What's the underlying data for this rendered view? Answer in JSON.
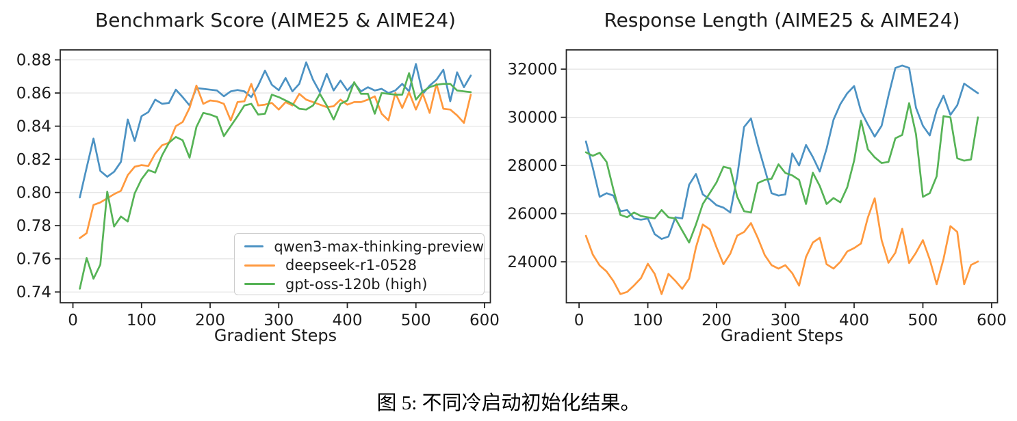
{
  "caption": {
    "text": "图 5: 不同冷启动初始化结果。"
  },
  "x_axis_label": "Gradient Steps",
  "colors": {
    "blue": "#4c92c3",
    "orange": "#ff993e",
    "green": "#56b356",
    "grid": "#e5e5e5",
    "spine": "#262626",
    "text": "#1c1c1c"
  },
  "chart_data": [
    {
      "type": "line",
      "title": "Benchmark Score (AIME25 & AIME24)",
      "xlabel": "Gradient Steps",
      "ylabel": "",
      "xlim": [
        -18.5,
        608.5
      ],
      "ylim": [
        0.7335,
        0.886
      ],
      "xticks": [
        0,
        100,
        200,
        300,
        400,
        500,
        600
      ],
      "yticks": [
        0.74,
        0.76,
        0.78,
        0.8,
        0.82,
        0.84,
        0.86,
        0.88
      ],
      "ytick_decimals": 2,
      "grid": "horizontal",
      "legend_position": "lower-right-inside",
      "x": [
        10,
        20,
        30,
        40,
        50,
        60,
        70,
        80,
        90,
        100,
        110,
        120,
        130,
        140,
        150,
        160,
        170,
        180,
        190,
        200,
        210,
        220,
        230,
        240,
        250,
        260,
        270,
        280,
        290,
        300,
        310,
        320,
        330,
        340,
        350,
        360,
        370,
        380,
        390,
        400,
        410,
        420,
        430,
        440,
        450,
        460,
        470,
        480,
        490,
        500,
        510,
        520,
        530,
        540,
        550,
        560,
        570,
        580
      ],
      "series": [
        {
          "name": "qwen3-max-thinking-preview",
          "color": "#4c92c3",
          "values": [
            0.797,
            0.815,
            0.8325,
            0.813,
            0.8095,
            0.8125,
            0.8185,
            0.844,
            0.831,
            0.846,
            0.8485,
            0.856,
            0.8535,
            0.854,
            0.862,
            0.8575,
            0.8525,
            0.863,
            0.8625,
            0.862,
            0.8615,
            0.858,
            0.861,
            0.8618,
            0.861,
            0.8575,
            0.8645,
            0.8735,
            0.865,
            0.8617,
            0.869,
            0.861,
            0.8655,
            0.8785,
            0.868,
            0.8605,
            0.8715,
            0.8615,
            0.8675,
            0.8615,
            0.866,
            0.861,
            0.8635,
            0.8615,
            0.8625,
            0.86,
            0.8615,
            0.8655,
            0.861,
            0.8775,
            0.8595,
            0.8645,
            0.868,
            0.874,
            0.855,
            0.8725,
            0.8635,
            0.8705
          ]
        },
        {
          "name": "deepseek-r1-0528",
          "color": "#ff993e",
          "values": [
            0.7725,
            0.7755,
            0.7925,
            0.794,
            0.7965,
            0.799,
            0.801,
            0.8105,
            0.8155,
            0.8165,
            0.816,
            0.8235,
            0.8285,
            0.83,
            0.84,
            0.8425,
            0.851,
            0.8645,
            0.8535,
            0.8555,
            0.855,
            0.8535,
            0.8435,
            0.8545,
            0.855,
            0.8655,
            0.8525,
            0.853,
            0.854,
            0.85,
            0.8545,
            0.8525,
            0.8595,
            0.856,
            0.8545,
            0.853,
            0.8515,
            0.852,
            0.856,
            0.853,
            0.8545,
            0.8545,
            0.856,
            0.858,
            0.8475,
            0.8435,
            0.86,
            0.851,
            0.8605,
            0.85,
            0.8595,
            0.848,
            0.8655,
            0.8505,
            0.85,
            0.8465,
            0.842,
            0.859
          ]
        },
        {
          "name": "gpt-oss-120b (high)",
          "color": "#56b356",
          "values": [
            0.742,
            0.7605,
            0.748,
            0.7565,
            0.8005,
            0.7795,
            0.7855,
            0.7825,
            0.7995,
            0.808,
            0.8135,
            0.812,
            0.8225,
            0.83,
            0.8335,
            0.8315,
            0.821,
            0.8395,
            0.848,
            0.847,
            0.8455,
            0.834,
            0.84,
            0.846,
            0.8525,
            0.8535,
            0.847,
            0.8475,
            0.859,
            0.8575,
            0.8555,
            0.8535,
            0.8505,
            0.85,
            0.8525,
            0.8595,
            0.8525,
            0.844,
            0.8535,
            0.8555,
            0.8665,
            0.8595,
            0.8595,
            0.8475,
            0.86,
            0.8595,
            0.859,
            0.859,
            0.872,
            0.856,
            0.861,
            0.8635,
            0.865,
            0.8655,
            0.8655,
            0.8615,
            0.861,
            0.8605
          ]
        }
      ]
    },
    {
      "type": "line",
      "title": "Response Length (AIME25 & AIME24)",
      "xlabel": "Gradient Steps",
      "ylabel": "",
      "xlim": [
        -18.5,
        608.5
      ],
      "ylim": [
        22300,
        32800
      ],
      "xticks": [
        0,
        100,
        200,
        300,
        400,
        500,
        600
      ],
      "yticks": [
        24000,
        26000,
        28000,
        30000,
        32000
      ],
      "ytick_decimals": 0,
      "grid": "horizontal",
      "legend_position": "none",
      "x": [
        10,
        20,
        30,
        40,
        50,
        60,
        70,
        80,
        90,
        100,
        110,
        120,
        130,
        140,
        150,
        160,
        170,
        180,
        190,
        200,
        210,
        220,
        230,
        240,
        250,
        260,
        270,
        280,
        290,
        300,
        310,
        320,
        330,
        340,
        350,
        360,
        370,
        380,
        390,
        400,
        410,
        420,
        430,
        440,
        450,
        460,
        470,
        480,
        490,
        500,
        510,
        520,
        530,
        540,
        550,
        560,
        570,
        580
      ],
      "series": [
        {
          "name": "qwen3-max-thinking-preview",
          "color": "#4c92c3",
          "values": [
            29000,
            27900,
            26700,
            26850,
            26750,
            26100,
            26150,
            25800,
            25750,
            25800,
            25150,
            24950,
            25050,
            25850,
            25800,
            27200,
            27650,
            26800,
            26600,
            26350,
            26250,
            26050,
            27550,
            29600,
            29950,
            28850,
            27850,
            26850,
            26750,
            26800,
            28500,
            28000,
            28850,
            28350,
            27750,
            28700,
            29900,
            30550,
            31000,
            31300,
            30250,
            29700,
            29200,
            29650,
            30900,
            32050,
            32150,
            32050,
            30400,
            29650,
            29250,
            30300,
            30900,
            30100,
            30500,
            31400,
            31200,
            31000
          ]
        },
        {
          "name": "deepseek-r1-0528",
          "color": "#ff993e",
          "values": [
            25080,
            24300,
            23850,
            23600,
            23200,
            22660,
            22750,
            23020,
            23320,
            23920,
            23500,
            22660,
            23500,
            23210,
            22880,
            23300,
            24600,
            25550,
            25350,
            24600,
            23900,
            24340,
            25090,
            25240,
            25610,
            24990,
            24280,
            23860,
            23720,
            23860,
            23530,
            23010,
            24200,
            24800,
            25000,
            23900,
            23720,
            24000,
            24430,
            24570,
            24760,
            25840,
            26640,
            24900,
            23960,
            24380,
            25370,
            23950,
            24380,
            24900,
            24100,
            23070,
            24110,
            25480,
            25240,
            23070,
            23870,
            24010
          ]
        },
        {
          "name": "gpt-oss-120b (high)",
          "color": "#56b356",
          "values": [
            28550,
            28400,
            28530,
            28150,
            27000,
            25950,
            25850,
            26050,
            25900,
            25850,
            25800,
            26150,
            25850,
            25800,
            25300,
            24800,
            25550,
            26400,
            26850,
            27300,
            27950,
            27880,
            26700,
            26100,
            26050,
            27270,
            27400,
            27450,
            28050,
            27690,
            27590,
            27400,
            26400,
            27700,
            27150,
            26400,
            26650,
            26470,
            27100,
            28200,
            29860,
            28670,
            28340,
            28100,
            28150,
            29130,
            29270,
            30590,
            29300,
            26700,
            26850,
            27550,
            30050,
            30000,
            28300,
            28200,
            28250,
            30000
          ]
        }
      ]
    }
  ]
}
